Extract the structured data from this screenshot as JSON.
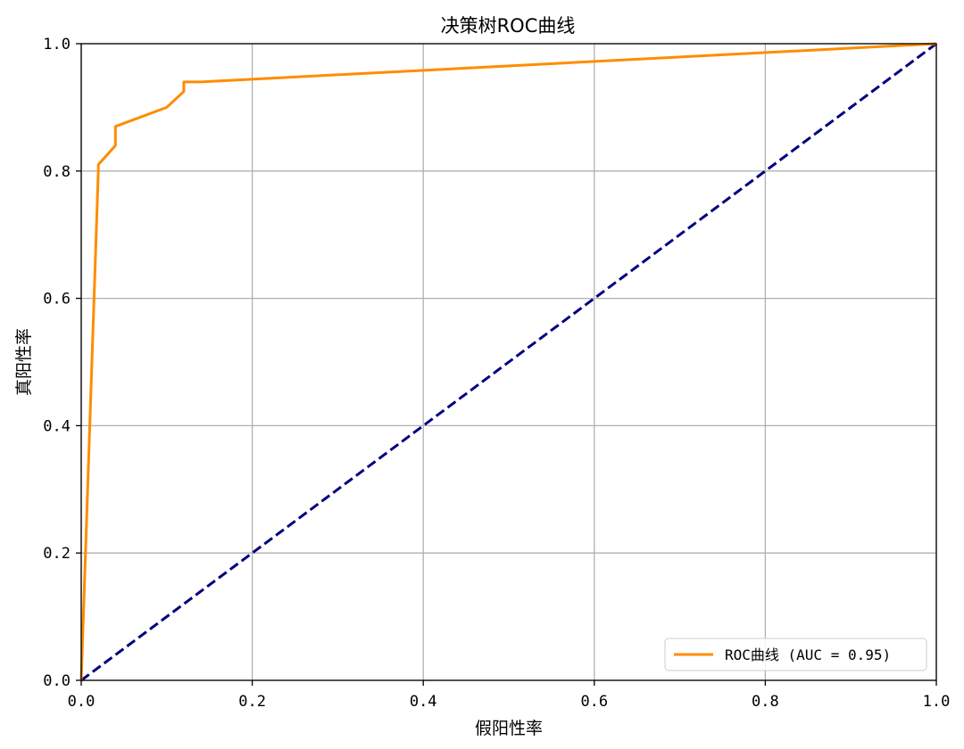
{
  "chart_data": {
    "type": "line",
    "title": "决策树ROC曲线",
    "xlabel": "假阳性率",
    "ylabel": "真阳性率",
    "xlim": [
      0.0,
      1.0
    ],
    "ylim": [
      0.0,
      1.0
    ],
    "xticks": [
      "0.0",
      "0.2",
      "0.4",
      "0.6",
      "0.8",
      "1.0"
    ],
    "yticks": [
      "0.0",
      "0.2",
      "0.4",
      "0.6",
      "0.8",
      "1.0"
    ],
    "grid": true,
    "legend_position": "lower-right",
    "series": [
      {
        "name": "ROC曲线 (AUC = 0.95)",
        "color": "#ff8c00",
        "style": "solid",
        "x": [
          0.0,
          0.0,
          0.02,
          0.02,
          0.04,
          0.04,
          0.06,
          0.1,
          0.12,
          0.12,
          0.14,
          1.0
        ],
        "y": [
          0.0,
          0.0,
          0.8,
          0.81,
          0.84,
          0.87,
          0.88,
          0.9,
          0.925,
          0.94,
          0.94,
          1.0
        ]
      },
      {
        "name": "",
        "color": "#000080",
        "style": "dashed",
        "x": [
          0.0,
          1.0
        ],
        "y": [
          0.0,
          1.0
        ]
      }
    ]
  }
}
